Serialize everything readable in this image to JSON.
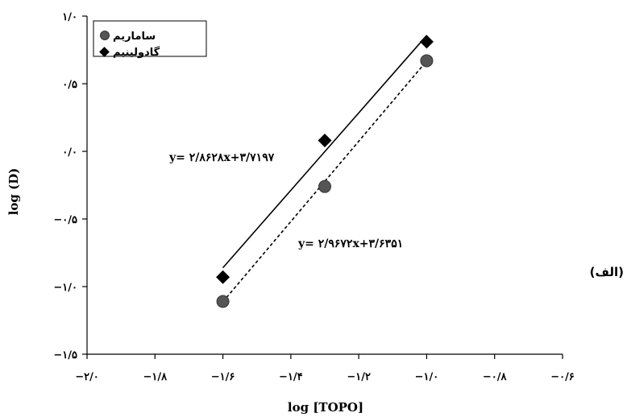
{
  "side_label": "(الف)",
  "chart_data": {
    "type": "scatter",
    "xlabel": "log [TOPO]",
    "ylabel": "log (D)",
    "xlim": [
      -2.0,
      -0.6
    ],
    "ylim": [
      -1.5,
      1.0
    ],
    "x_ticks": [
      {
        "value": -2.0,
        "label": "−۲/۰"
      },
      {
        "value": -1.8,
        "label": "−۱/۸"
      },
      {
        "value": -1.6,
        "label": "−۱/۶"
      },
      {
        "value": -1.4,
        "label": "−۱/۴"
      },
      {
        "value": -1.2,
        "label": "−۱/۲"
      },
      {
        "value": -1.0,
        "label": "−۱/۰"
      },
      {
        "value": -0.8,
        "label": "−۰/۸"
      },
      {
        "value": -0.6,
        "label": "−۰/۶"
      }
    ],
    "y_ticks": [
      {
        "value": 1.0,
        "label": "۱/۰"
      },
      {
        "value": 0.5,
        "label": "۰/۵"
      },
      {
        "value": 0.0,
        "label": "۰/۰"
      },
      {
        "value": -0.5,
        "label": "−۰/۵"
      },
      {
        "value": -1.0,
        "label": "−۱/۰"
      },
      {
        "value": -1.5,
        "label": "−۱/۵"
      }
    ],
    "legend_position": "top-left",
    "series": [
      {
        "name": "ساماریم",
        "marker": "circle",
        "color": "#555555",
        "x": [
          -1.6,
          -1.3,
          -1.0
        ],
        "y": [
          -1.11,
          -0.26,
          0.67
        ],
        "fit": {
          "slope": 2.9672,
          "intercept": 3.6351,
          "style": "dashed",
          "label": "y= ۲/۹۶۷۲x+۳/۶۳۵۱"
        }
      },
      {
        "name": "گادولینیم",
        "marker": "diamond",
        "color": "#000000",
        "x": [
          -1.6,
          -1.3,
          -1.0
        ],
        "y": [
          -0.93,
          0.08,
          0.81
        ],
        "fit": {
          "slope": 2.8628,
          "intercept": 3.7197,
          "style": "solid",
          "label": "y= ۲/۸۶۲۸x+۳/۷۱۹۷"
        }
      }
    ]
  }
}
